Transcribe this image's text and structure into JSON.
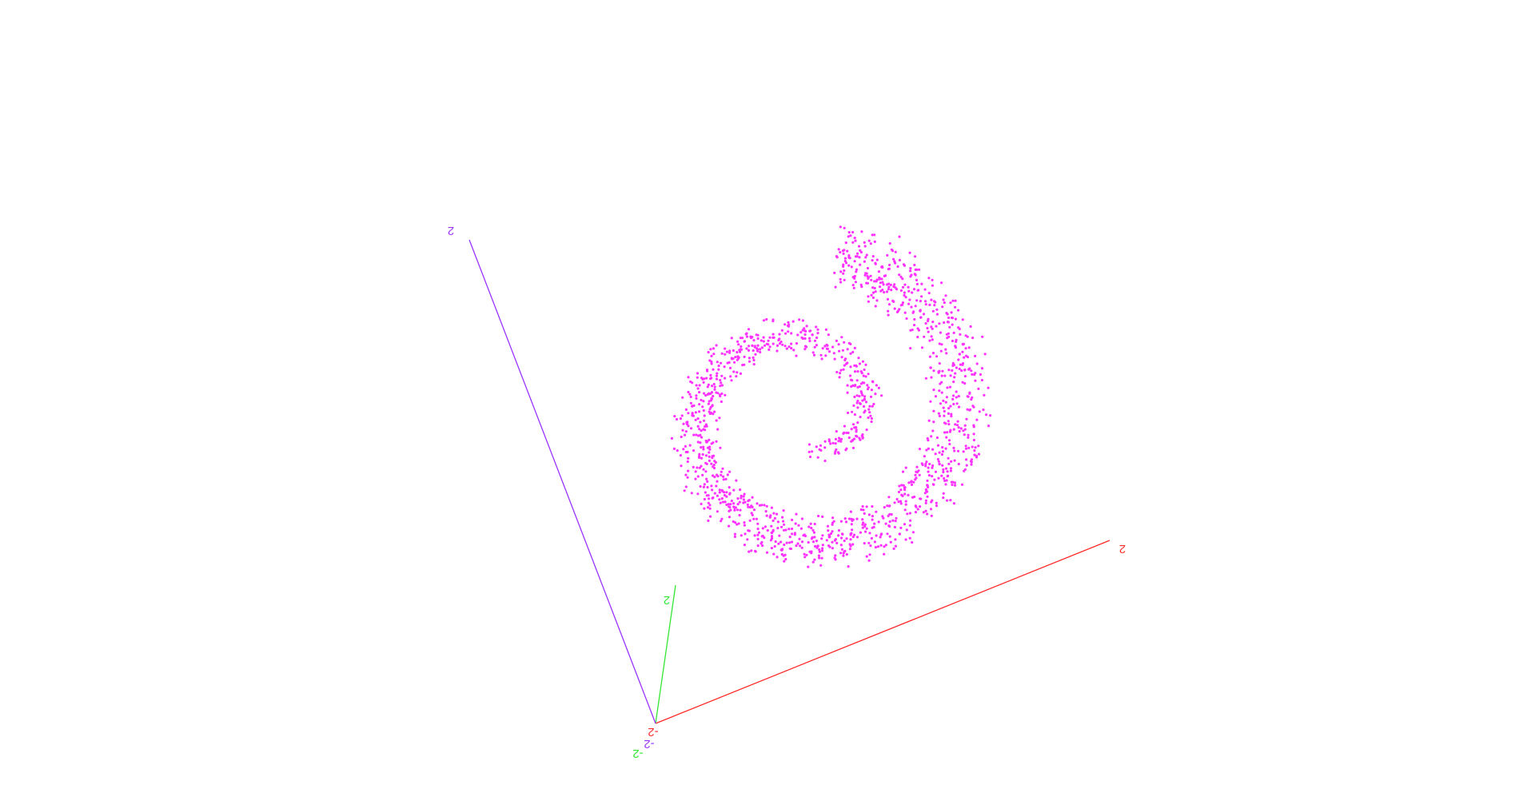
{
  "chart_data": {
    "type": "scatter",
    "projection": "3d",
    "title": "",
    "point_color": "#ff33ff",
    "point_count": 1500,
    "shape": "swiss-roll spiral point cloud",
    "axes": [
      {
        "name": "x",
        "color": "#ff2a2a",
        "range": [
          -2,
          2
        ],
        "min_label": "-2",
        "max_label": "2"
      },
      {
        "name": "y",
        "color": "#33e633",
        "range": [
          -2,
          2
        ],
        "min_label": "-2",
        "max_label": "2"
      },
      {
        "name": "z",
        "color": "#9933ff",
        "range": [
          -2,
          2
        ],
        "min_label": "-2",
        "max_label": "2"
      }
    ]
  }
}
